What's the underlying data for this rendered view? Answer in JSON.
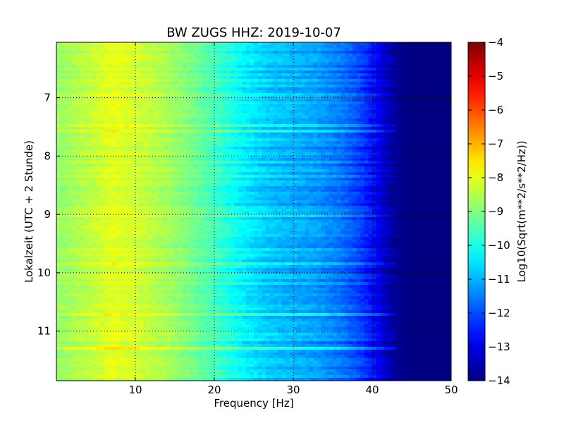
{
  "chart_data": {
    "type": "heatmap",
    "title": "BW ZUGS HHZ: 2019-10-07",
    "xlabel": "Frequency [Hz]",
    "ylabel": "Lokalzeit (UTC + 2 Stunde)",
    "xlim": [
      0,
      50
    ],
    "ylim": [
      11.85,
      6.05
    ],
    "y_axis_inverted": true,
    "xticks": [
      10,
      20,
      30,
      40,
      50
    ],
    "yticks": [
      7,
      8,
      9,
      10,
      11
    ],
    "grid": true,
    "grid_style": "dotted",
    "colormap": "jet",
    "colorbar": {
      "label": "Log10(Sqrt(m**2/s**2/Hz))",
      "min": -14,
      "max": -4,
      "ticks": [
        -4,
        -5,
        -6,
        -7,
        -8,
        -9,
        -10,
        -11,
        -12,
        -13,
        -14
      ]
    },
    "spectral_profile": {
      "frequency_hz": [
        0,
        2,
        5,
        7,
        10,
        13,
        16,
        20,
        24,
        27,
        30,
        33,
        36,
        38,
        40,
        41.5,
        43,
        45,
        50
      ],
      "log10_amplitude": [
        -8.8,
        -8.6,
        -8.3,
        -8.0,
        -8.2,
        -8.5,
        -8.9,
        -9.6,
        -10.4,
        -10.8,
        -11.0,
        -11.2,
        -11.6,
        -12.0,
        -12.6,
        -13.3,
        -13.8,
        -14.0,
        -14.0
      ]
    }
  },
  "colors": {
    "grid": "#000000",
    "frame": "#000000",
    "background": "#ffffff"
  }
}
